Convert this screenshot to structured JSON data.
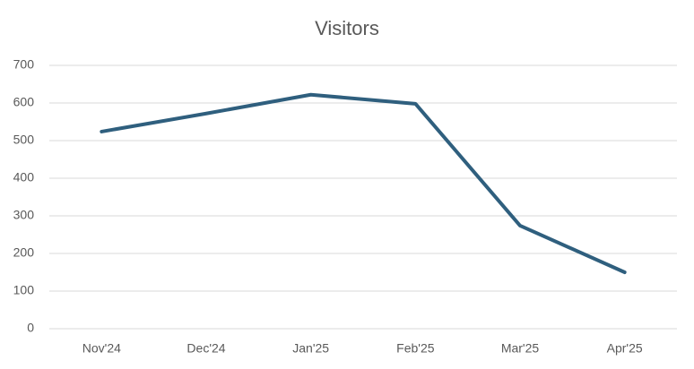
{
  "chart_data": {
    "type": "line",
    "title": "Visitors",
    "categories": [
      "Nov'24",
      "Dec'24",
      "Jan'25",
      "Feb'25",
      "Mar'25",
      "Apr'25"
    ],
    "values": [
      524,
      572,
      622,
      598,
      274,
      150
    ],
    "color": "#2f5f7e",
    "ylim": [
      0,
      700
    ],
    "yticks": [
      0,
      100,
      200,
      300,
      400,
      500,
      600,
      700
    ],
    "grid": true
  }
}
